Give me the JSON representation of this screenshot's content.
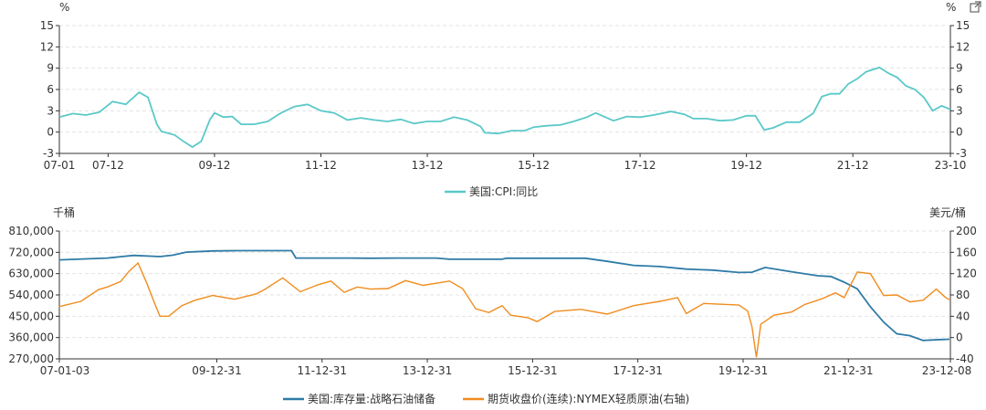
{
  "export_icon": "external-link-icon",
  "colors": {
    "cpi": "#5bc8c8",
    "spr": "#2e7ba6",
    "oil": "#f08c1e"
  },
  "chart_data": [
    {
      "type": "line",
      "y_unit_left": "%",
      "y_unit_right": "%",
      "yticks": [
        -3,
        0,
        3,
        6,
        9,
        12,
        15
      ],
      "ylim": [
        -3,
        15
      ],
      "x_ticks": [
        "07-01",
        "07-12",
        "09-12",
        "11-12",
        "13-12",
        "15-12",
        "17-12",
        "19-12",
        "21-12",
        "23-10"
      ],
      "x_range": [
        "2007-01",
        "2023-10"
      ],
      "legend": "美国:CPI:同比",
      "series": [
        {
          "name": "美国:CPI:同比",
          "points": [
            [
              "2007-01",
              2.1
            ],
            [
              "2007-04",
              2.6
            ],
            [
              "2007-07",
              2.4
            ],
            [
              "2007-10",
              2.8
            ],
            [
              "2008-01",
              4.3
            ],
            [
              "2008-04",
              3.9
            ],
            [
              "2008-07",
              5.6
            ],
            [
              "2008-09",
              4.9
            ],
            [
              "2008-11",
              1.1
            ],
            [
              "2008-12",
              0.1
            ],
            [
              "2009-03",
              -0.4
            ],
            [
              "2009-05",
              -1.3
            ],
            [
              "2009-07",
              -2.1
            ],
            [
              "2009-09",
              -1.3
            ],
            [
              "2009-11",
              1.8
            ],
            [
              "2009-12",
              2.7
            ],
            [
              "2010-02",
              2.1
            ],
            [
              "2010-04",
              2.2
            ],
            [
              "2010-06",
              1.1
            ],
            [
              "2010-09",
              1.1
            ],
            [
              "2010-12",
              1.5
            ],
            [
              "2011-03",
              2.7
            ],
            [
              "2011-06",
              3.6
            ],
            [
              "2011-09",
              3.9
            ],
            [
              "2011-12",
              3.0
            ],
            [
              "2012-03",
              2.7
            ],
            [
              "2012-06",
              1.7
            ],
            [
              "2012-09",
              2.0
            ],
            [
              "2012-12",
              1.7
            ],
            [
              "2013-03",
              1.5
            ],
            [
              "2013-06",
              1.8
            ],
            [
              "2013-09",
              1.2
            ],
            [
              "2013-12",
              1.5
            ],
            [
              "2014-03",
              1.5
            ],
            [
              "2014-06",
              2.1
            ],
            [
              "2014-09",
              1.7
            ],
            [
              "2014-12",
              0.8
            ],
            [
              "2015-01",
              -0.1
            ],
            [
              "2015-04",
              -0.2
            ],
            [
              "2015-07",
              0.2
            ],
            [
              "2015-10",
              0.2
            ],
            [
              "2015-12",
              0.7
            ],
            [
              "2016-03",
              0.9
            ],
            [
              "2016-06",
              1.0
            ],
            [
              "2016-09",
              1.5
            ],
            [
              "2016-12",
              2.1
            ],
            [
              "2017-02",
              2.7
            ],
            [
              "2017-06",
              1.6
            ],
            [
              "2017-09",
              2.2
            ],
            [
              "2017-12",
              2.1
            ],
            [
              "2018-03",
              2.4
            ],
            [
              "2018-07",
              2.9
            ],
            [
              "2018-10",
              2.5
            ],
            [
              "2018-12",
              1.9
            ],
            [
              "2019-03",
              1.9
            ],
            [
              "2019-06",
              1.6
            ],
            [
              "2019-09",
              1.7
            ],
            [
              "2019-12",
              2.3
            ],
            [
              "2020-02",
              2.3
            ],
            [
              "2020-04",
              0.3
            ],
            [
              "2020-06",
              0.6
            ],
            [
              "2020-09",
              1.4
            ],
            [
              "2020-12",
              1.4
            ],
            [
              "2021-03",
              2.6
            ],
            [
              "2021-05",
              5.0
            ],
            [
              "2021-07",
              5.4
            ],
            [
              "2021-09",
              5.4
            ],
            [
              "2021-11",
              6.8
            ],
            [
              "2022-01",
              7.5
            ],
            [
              "2022-03",
              8.5
            ],
            [
              "2022-06",
              9.1
            ],
            [
              "2022-08",
              8.3
            ],
            [
              "2022-10",
              7.7
            ],
            [
              "2022-12",
              6.5
            ],
            [
              "2023-02",
              6.0
            ],
            [
              "2023-04",
              4.9
            ],
            [
              "2023-06",
              3.0
            ],
            [
              "2023-08",
              3.7
            ],
            [
              "2023-10",
              3.2
            ]
          ]
        }
      ]
    },
    {
      "type": "line",
      "y_unit_left": "千桶",
      "y_unit_right": "美元/桶",
      "yticks_left": [
        "270,000",
        "360,000",
        "450,000",
        "540,000",
        "630,000",
        "720,000",
        "810,000"
      ],
      "ylim_left": [
        270000,
        810000
      ],
      "yticks_right": [
        -40,
        0,
        40,
        80,
        120,
        160,
        200
      ],
      "ylim_right": [
        -40,
        200
      ],
      "x_ticks": [
        "07-01-03",
        "09-12-31",
        "11-12-31",
        "13-12-31",
        "15-12-31",
        "17-12-31",
        "19-12-31",
        "21-12-31",
        "23-12-08"
      ],
      "x_range": [
        "2007-01-03",
        "2023-12-08"
      ],
      "legend": [
        "美国:库存量:战略石油储备",
        "期货收盘价(连续):NYMEX轻质原油(右轴)"
      ],
      "series": [
        {
          "name": "美国:库存量:战略石油储备",
          "axis": "left",
          "points": [
            [
              "2007-01",
              688000
            ],
            [
              "2007-12",
              696000
            ],
            [
              "2008-06",
              707000
            ],
            [
              "2008-12",
              702000
            ],
            [
              "2009-03",
              708000
            ],
            [
              "2009-06",
              721000
            ],
            [
              "2009-12",
              726000
            ],
            [
              "2010-06",
              727000
            ],
            [
              "2010-12",
              727000
            ],
            [
              "2011-06",
              727000
            ],
            [
              "2011-07",
              696000
            ],
            [
              "2012-06",
              696000
            ],
            [
              "2012-12",
              695000
            ],
            [
              "2013-06",
              696000
            ],
            [
              "2014-03",
              696000
            ],
            [
              "2014-06",
              691000
            ],
            [
              "2015-06",
              691000
            ],
            [
              "2015-07",
              695000
            ],
            [
              "2016-06",
              695000
            ],
            [
              "2017-01",
              695000
            ],
            [
              "2017-06",
              682000
            ],
            [
              "2017-12",
              665000
            ],
            [
              "2018-06",
              660000
            ],
            [
              "2018-12",
              649000
            ],
            [
              "2019-06",
              645000
            ],
            [
              "2019-12",
              635000
            ],
            [
              "2020-03",
              636000
            ],
            [
              "2020-06",
              656000
            ],
            [
              "2020-12",
              638000
            ],
            [
              "2021-06",
              621000
            ],
            [
              "2021-09",
              618000
            ],
            [
              "2021-12",
              594000
            ],
            [
              "2022-03",
              566000
            ],
            [
              "2022-06",
              490000
            ],
            [
              "2022-09",
              425000
            ],
            [
              "2022-12",
              376000
            ],
            [
              "2023-03",
              368000
            ],
            [
              "2023-06",
              348000
            ],
            [
              "2023-08",
              350000
            ],
            [
              "2023-12",
              353000
            ]
          ]
        },
        {
          "name": "期货收盘价(连续):NYMEX轻质原油(右轴)",
          "axis": "right",
          "points": [
            [
              "2007-01",
              58
            ],
            [
              "2007-06",
              68
            ],
            [
              "2007-10",
              90
            ],
            [
              "2007-12",
              95
            ],
            [
              "2008-03",
              105
            ],
            [
              "2008-05",
              125
            ],
            [
              "2008-07",
              140
            ],
            [
              "2008-09",
              102
            ],
            [
              "2008-11",
              60
            ],
            [
              "2008-12",
              40
            ],
            [
              "2009-02",
              40
            ],
            [
              "2009-05",
              60
            ],
            [
              "2009-08",
              70
            ],
            [
              "2009-12",
              79
            ],
            [
              "2010-05",
              72
            ],
            [
              "2010-10",
              82
            ],
            [
              "2010-12",
              91
            ],
            [
              "2011-04",
              112
            ],
            [
              "2011-08",
              86
            ],
            [
              "2011-12",
              99
            ],
            [
              "2012-03",
              106
            ],
            [
              "2012-06",
              85
            ],
            [
              "2012-09",
              95
            ],
            [
              "2012-12",
              91
            ],
            [
              "2013-04",
              92
            ],
            [
              "2013-08",
              107
            ],
            [
              "2013-12",
              98
            ],
            [
              "2014-06",
              106
            ],
            [
              "2014-09",
              92
            ],
            [
              "2014-12",
              54
            ],
            [
              "2015-03",
              47
            ],
            [
              "2015-06",
              60
            ],
            [
              "2015-08",
              42
            ],
            [
              "2015-12",
              37
            ],
            [
              "2016-02",
              30
            ],
            [
              "2016-06",
              49
            ],
            [
              "2016-12",
              53
            ],
            [
              "2017-06",
              44
            ],
            [
              "2017-12",
              60
            ],
            [
              "2018-06",
              68
            ],
            [
              "2018-10",
              75
            ],
            [
              "2018-12",
              45
            ],
            [
              "2019-04",
              64
            ],
            [
              "2019-12",
              61
            ],
            [
              "2020-02",
              50
            ],
            [
              "2020-03",
              20
            ],
            [
              "2020-04",
              -37
            ],
            [
              "2020-05",
              25
            ],
            [
              "2020-08",
              42
            ],
            [
              "2020-12",
              48
            ],
            [
              "2021-03",
              62
            ],
            [
              "2021-07",
              73
            ],
            [
              "2021-10",
              84
            ],
            [
              "2021-12",
              75
            ],
            [
              "2022-03",
              123
            ],
            [
              "2022-06",
              120
            ],
            [
              "2022-09",
              79
            ],
            [
              "2022-12",
              80
            ],
            [
              "2023-03",
              67
            ],
            [
              "2023-06",
              70
            ],
            [
              "2023-09",
              91
            ],
            [
              "2023-11",
              76
            ],
            [
              "2023-12",
              71
            ]
          ]
        }
      ]
    }
  ]
}
